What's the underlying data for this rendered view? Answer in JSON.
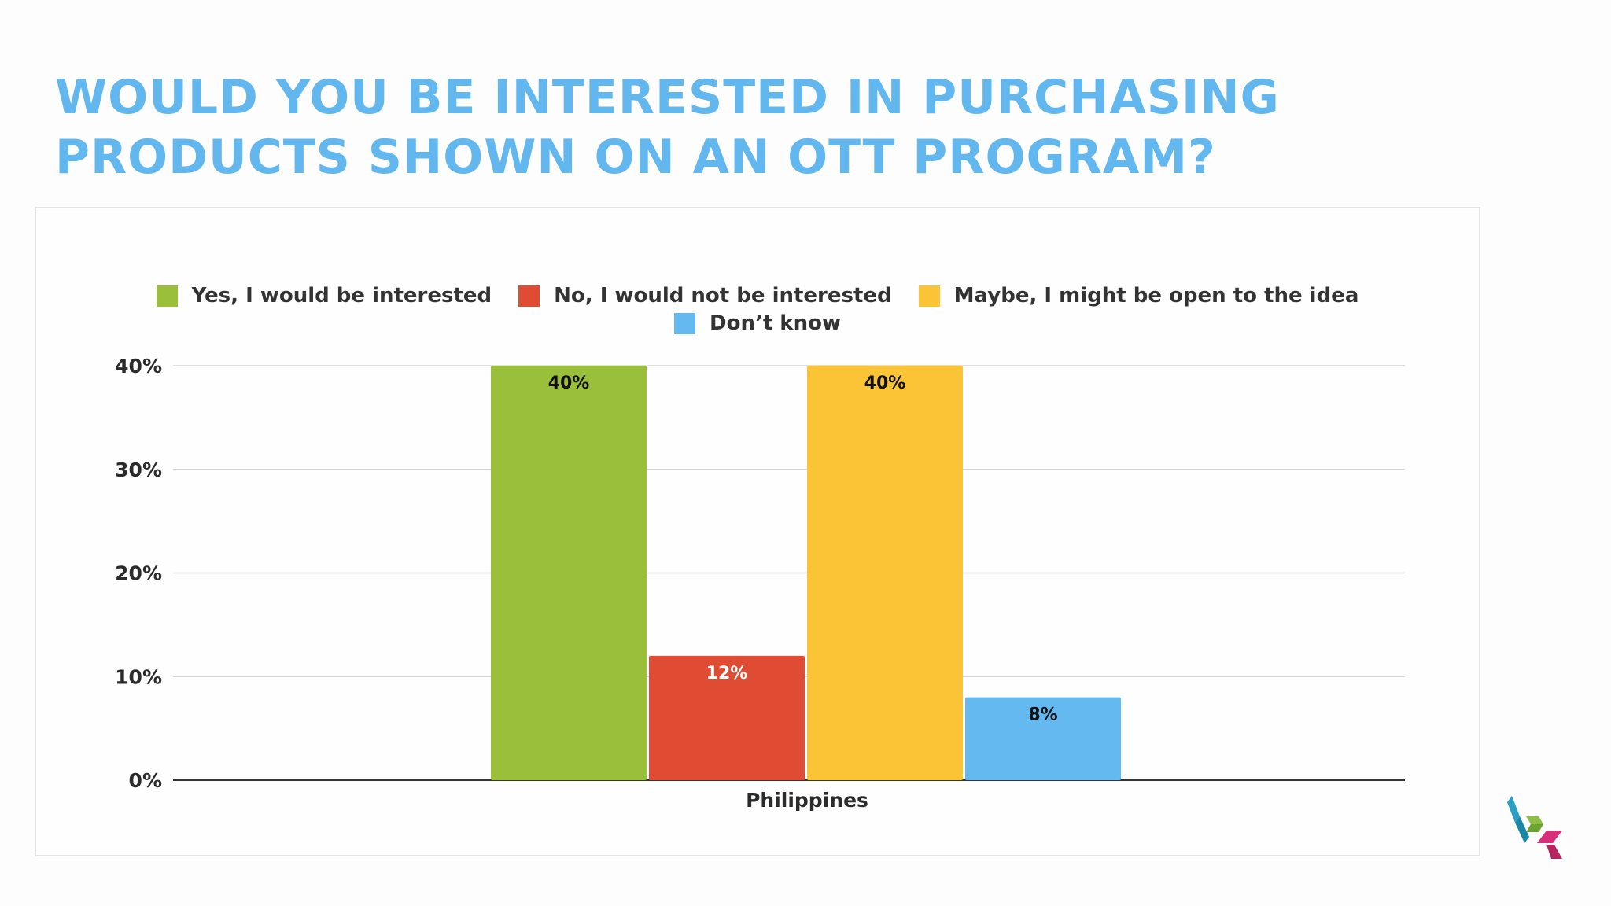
{
  "slide": {
    "title": "WOULD YOU BE INTERESTED IN PURCHASING PRODUCTS SHOWN ON AN OTT PROGRAM?"
  },
  "chart_data": {
    "type": "bar",
    "categories": [
      "Philippines"
    ],
    "series": [
      {
        "name": "Yes, I would be interested",
        "color": "#9abf3a",
        "values": [
          40
        ],
        "labels": [
          "40%"
        ],
        "label_color": "#111111"
      },
      {
        "name": "No, I would not be interested",
        "color": "#e04b33",
        "values": [
          12
        ],
        "labels": [
          "12%"
        ],
        "label_color": "#ffffff"
      },
      {
        "name": "Maybe, I might be open to the idea",
        "color": "#fbc436",
        "values": [
          40
        ],
        "labels": [
          "40%"
        ],
        "label_color": "#111111"
      },
      {
        "name": "Don’t know",
        "color": "#63b9f0",
        "values": [
          8
        ],
        "labels": [
          "8%"
        ],
        "label_color": "#111111"
      }
    ],
    "yticks": [
      0,
      10,
      20,
      30,
      40
    ],
    "ytick_labels": [
      "0%",
      "10%",
      "20%",
      "30%",
      "40%"
    ],
    "ylim": [
      0,
      40
    ],
    "grid": true,
    "legend_position": "top",
    "title": "",
    "xlabel": "",
    "ylabel": ""
  }
}
